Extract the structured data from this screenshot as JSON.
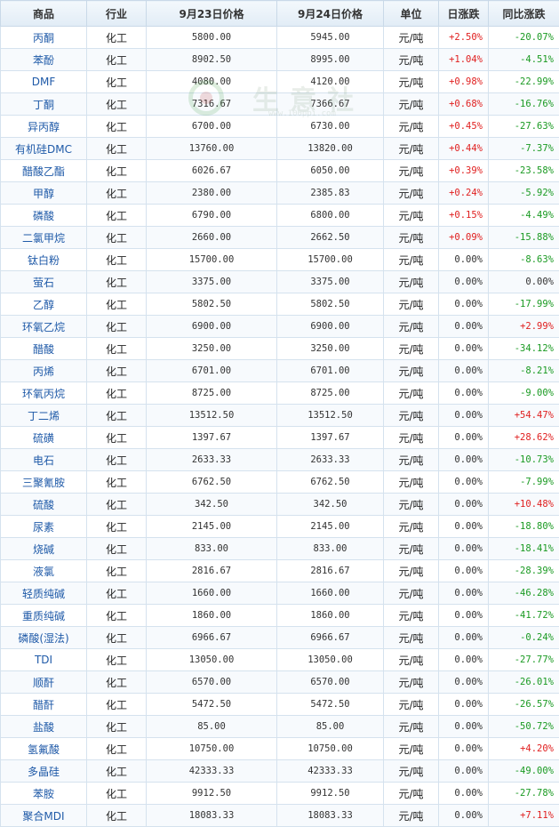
{
  "headers": [
    "商品",
    "行业",
    "9月23日价格",
    "9月24日价格",
    "单位",
    "日涨跌",
    "同比涨跌"
  ],
  "rows": [
    {
      "name": "丙酮",
      "industry": "化工",
      "p1": "5800.00",
      "p2": "5945.00",
      "unit": "元/吨",
      "daily": "+2.50%",
      "yoy": "-20.07%"
    },
    {
      "name": "苯酚",
      "industry": "化工",
      "p1": "8902.50",
      "p2": "8995.00",
      "unit": "元/吨",
      "daily": "+1.04%",
      "yoy": "-4.51%"
    },
    {
      "name": "DMF",
      "industry": "化工",
      "p1": "4080.00",
      "p2": "4120.00",
      "unit": "元/吨",
      "daily": "+0.98%",
      "yoy": "-22.99%"
    },
    {
      "name": "丁酮",
      "industry": "化工",
      "p1": "7316.67",
      "p2": "7366.67",
      "unit": "元/吨",
      "daily": "+0.68%",
      "yoy": "-16.76%"
    },
    {
      "name": "异丙醇",
      "industry": "化工",
      "p1": "6700.00",
      "p2": "6730.00",
      "unit": "元/吨",
      "daily": "+0.45%",
      "yoy": "-27.63%"
    },
    {
      "name": "有机硅DMC",
      "industry": "化工",
      "p1": "13760.00",
      "p2": "13820.00",
      "unit": "元/吨",
      "daily": "+0.44%",
      "yoy": "-7.37%"
    },
    {
      "name": "醋酸乙酯",
      "industry": "化工",
      "p1": "6026.67",
      "p2": "6050.00",
      "unit": "元/吨",
      "daily": "+0.39%",
      "yoy": "-23.58%"
    },
    {
      "name": "甲醇",
      "industry": "化工",
      "p1": "2380.00",
      "p2": "2385.83",
      "unit": "元/吨",
      "daily": "+0.24%",
      "yoy": "-5.92%"
    },
    {
      "name": "磷酸",
      "industry": "化工",
      "p1": "6790.00",
      "p2": "6800.00",
      "unit": "元/吨",
      "daily": "+0.15%",
      "yoy": "-4.49%"
    },
    {
      "name": "二氯甲烷",
      "industry": "化工",
      "p1": "2660.00",
      "p2": "2662.50",
      "unit": "元/吨",
      "daily": "+0.09%",
      "yoy": "-15.88%"
    },
    {
      "name": "钛白粉",
      "industry": "化工",
      "p1": "15700.00",
      "p2": "15700.00",
      "unit": "元/吨",
      "daily": "0.00%",
      "yoy": "-8.63%"
    },
    {
      "name": "萤石",
      "industry": "化工",
      "p1": "3375.00",
      "p2": "3375.00",
      "unit": "元/吨",
      "daily": "0.00%",
      "yoy": "0.00%"
    },
    {
      "name": "乙醇",
      "industry": "化工",
      "p1": "5802.50",
      "p2": "5802.50",
      "unit": "元/吨",
      "daily": "0.00%",
      "yoy": "-17.99%"
    },
    {
      "name": "环氧乙烷",
      "industry": "化工",
      "p1": "6900.00",
      "p2": "6900.00",
      "unit": "元/吨",
      "daily": "0.00%",
      "yoy": "+2.99%"
    },
    {
      "name": "醋酸",
      "industry": "化工",
      "p1": "3250.00",
      "p2": "3250.00",
      "unit": "元/吨",
      "daily": "0.00%",
      "yoy": "-34.12%"
    },
    {
      "name": "丙烯",
      "industry": "化工",
      "p1": "6701.00",
      "p2": "6701.00",
      "unit": "元/吨",
      "daily": "0.00%",
      "yoy": "-8.21%"
    },
    {
      "name": "环氧丙烷",
      "industry": "化工",
      "p1": "8725.00",
      "p2": "8725.00",
      "unit": "元/吨",
      "daily": "0.00%",
      "yoy": "-9.00%"
    },
    {
      "name": "丁二烯",
      "industry": "化工",
      "p1": "13512.50",
      "p2": "13512.50",
      "unit": "元/吨",
      "daily": "0.00%",
      "yoy": "+54.47%"
    },
    {
      "name": "硫磺",
      "industry": "化工",
      "p1": "1397.67",
      "p2": "1397.67",
      "unit": "元/吨",
      "daily": "0.00%",
      "yoy": "+28.62%"
    },
    {
      "name": "电石",
      "industry": "化工",
      "p1": "2633.33",
      "p2": "2633.33",
      "unit": "元/吨",
      "daily": "0.00%",
      "yoy": "-10.73%"
    },
    {
      "name": "三聚氰胺",
      "industry": "化工",
      "p1": "6762.50",
      "p2": "6762.50",
      "unit": "元/吨",
      "daily": "0.00%",
      "yoy": "-7.99%"
    },
    {
      "name": "硫酸",
      "industry": "化工",
      "p1": "342.50",
      "p2": "342.50",
      "unit": "元/吨",
      "daily": "0.00%",
      "yoy": "+10.48%"
    },
    {
      "name": "尿素",
      "industry": "化工",
      "p1": "2145.00",
      "p2": "2145.00",
      "unit": "元/吨",
      "daily": "0.00%",
      "yoy": "-18.80%"
    },
    {
      "name": "烧碱",
      "industry": "化工",
      "p1": "833.00",
      "p2": "833.00",
      "unit": "元/吨",
      "daily": "0.00%",
      "yoy": "-18.41%"
    },
    {
      "name": "液氯",
      "industry": "化工",
      "p1": "2816.67",
      "p2": "2816.67",
      "unit": "元/吨",
      "daily": "0.00%",
      "yoy": "-28.39%"
    },
    {
      "name": "轻质纯碱",
      "industry": "化工",
      "p1": "1660.00",
      "p2": "1660.00",
      "unit": "元/吨",
      "daily": "0.00%",
      "yoy": "-46.28%"
    },
    {
      "name": "重质纯碱",
      "industry": "化工",
      "p1": "1860.00",
      "p2": "1860.00",
      "unit": "元/吨",
      "daily": "0.00%",
      "yoy": "-41.72%"
    },
    {
      "name": "磷酸(湿法)",
      "industry": "化工",
      "p1": "6966.67",
      "p2": "6966.67",
      "unit": "元/吨",
      "daily": "0.00%",
      "yoy": "-0.24%"
    },
    {
      "name": "TDI",
      "industry": "化工",
      "p1": "13050.00",
      "p2": "13050.00",
      "unit": "元/吨",
      "daily": "0.00%",
      "yoy": "-27.77%"
    },
    {
      "name": "顺酐",
      "industry": "化工",
      "p1": "6570.00",
      "p2": "6570.00",
      "unit": "元/吨",
      "daily": "0.00%",
      "yoy": "-26.01%"
    },
    {
      "name": "醋酐",
      "industry": "化工",
      "p1": "5472.50",
      "p2": "5472.50",
      "unit": "元/吨",
      "daily": "0.00%",
      "yoy": "-26.57%"
    },
    {
      "name": "盐酸",
      "industry": "化工",
      "p1": "85.00",
      "p2": "85.00",
      "unit": "元/吨",
      "daily": "0.00%",
      "yoy": "-50.72%"
    },
    {
      "name": "氢氟酸",
      "industry": "化工",
      "p1": "10750.00",
      "p2": "10750.00",
      "unit": "元/吨",
      "daily": "0.00%",
      "yoy": "+4.20%"
    },
    {
      "name": "多晶硅",
      "industry": "化工",
      "p1": "42333.33",
      "p2": "42333.33",
      "unit": "元/吨",
      "daily": "0.00%",
      "yoy": "-49.00%"
    },
    {
      "name": "苯胺",
      "industry": "化工",
      "p1": "9912.50",
      "p2": "9912.50",
      "unit": "元/吨",
      "daily": "0.00%",
      "yoy": "-27.78%"
    },
    {
      "name": "聚合MDI",
      "industry": "化工",
      "p1": "18083.33",
      "p2": "18083.33",
      "unit": "元/吨",
      "daily": "0.00%",
      "yoy": "+7.11%"
    }
  ],
  "watermark": {
    "text": "生意社",
    "url": "www.100ppi.com"
  },
  "colors": {
    "up": "#e02020",
    "down": "#1a9a22",
    "name_link": "#1f5aa8"
  }
}
